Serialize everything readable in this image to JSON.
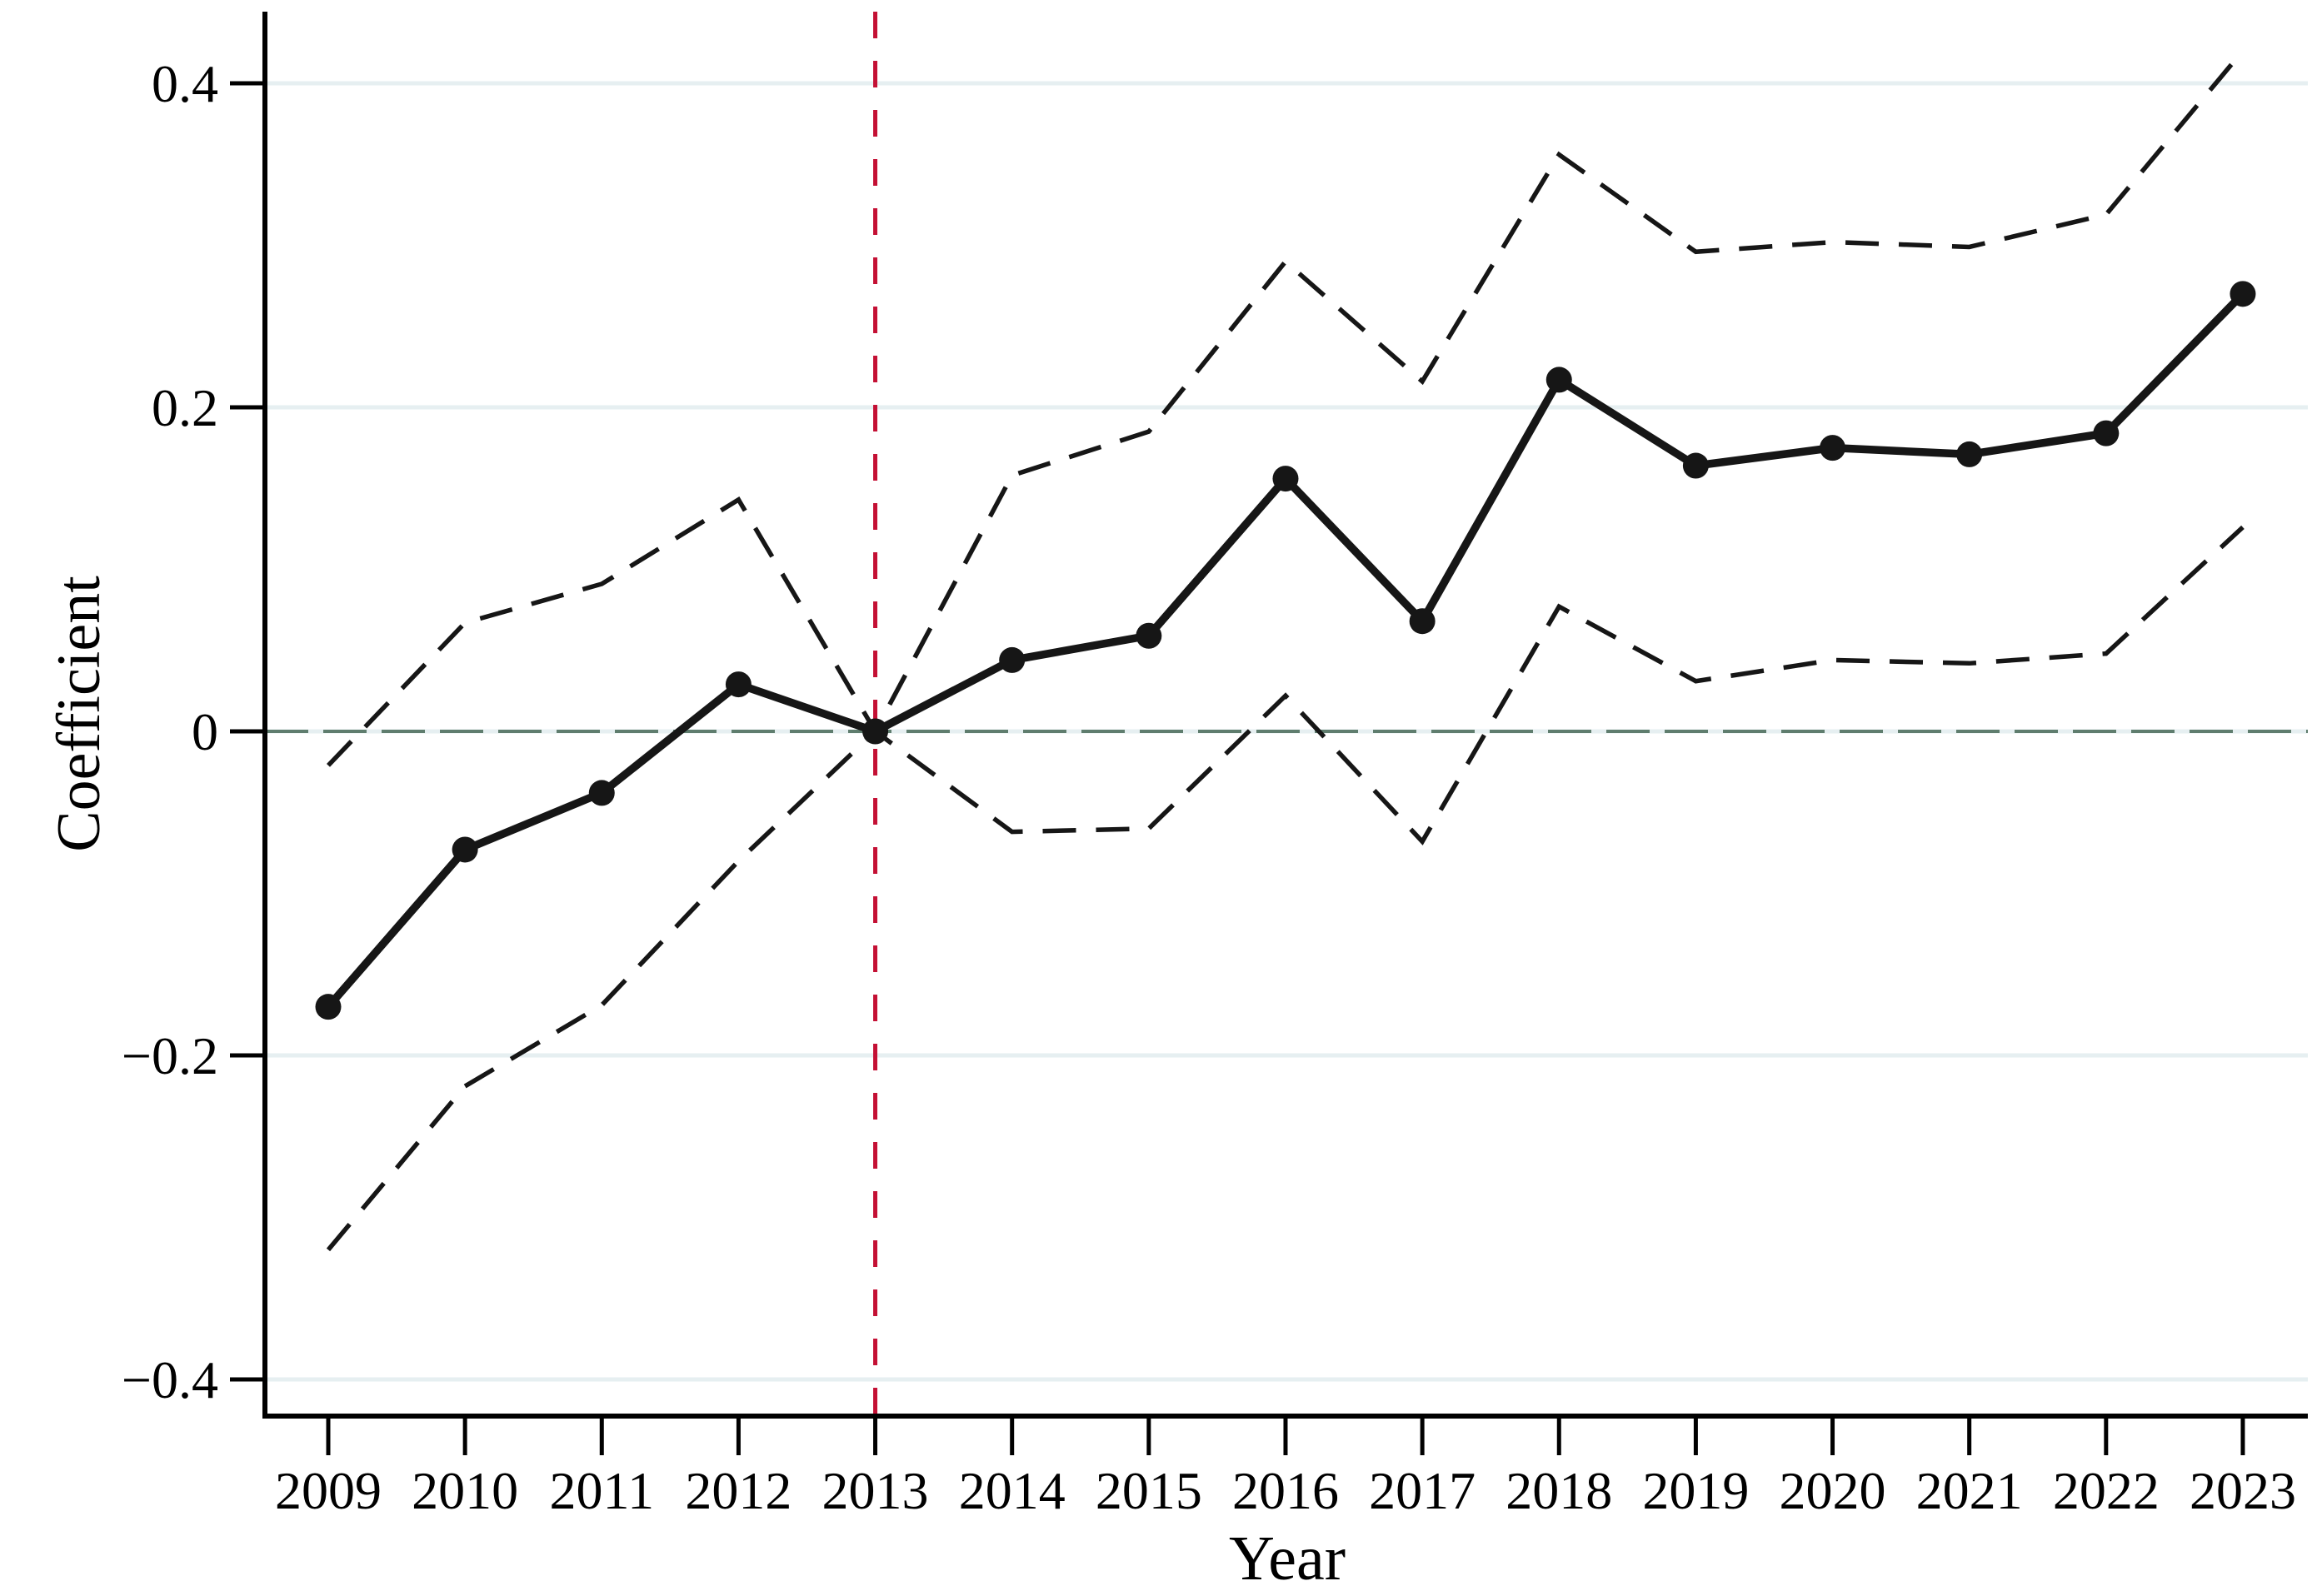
{
  "chart_data": {
    "type": "line",
    "title": "",
    "xlabel": "Year",
    "ylabel": "Coefficient",
    "x": [
      2009,
      2010,
      2011,
      2012,
      2013,
      2014,
      2015,
      2016,
      2017,
      2018,
      2019,
      2020,
      2021,
      2022,
      2023
    ],
    "series": [
      {
        "name": "coefficient",
        "style": "solid-with-markers",
        "values": [
          -0.17,
          -0.073,
          -0.038,
          0.029,
          0,
          0.044,
          0.059,
          0.156,
          0.068,
          0.217,
          0.164,
          0.175,
          0.171,
          0.184,
          0.27
        ]
      },
      {
        "name": "ci-upper",
        "style": "dashed",
        "values": [
          -0.021,
          0.067,
          0.091,
          0.143,
          0,
          0.158,
          0.185,
          0.29,
          0.216,
          0.356,
          0.296,
          0.302,
          0.299,
          0.319,
          0.42
        ]
      },
      {
        "name": "ci-lower",
        "style": "dashed",
        "values": [
          -0.32,
          -0.219,
          -0.169,
          -0.08,
          0,
          -0.062,
          -0.06,
          0.022,
          -0.068,
          0.077,
          0.031,
          0.044,
          0.042,
          0.048,
          0.126
        ]
      }
    ],
    "reference_lines": {
      "vertical_x": 2013,
      "horizontal_y": 0
    },
    "x_axis": {
      "label": "Year",
      "tick_labels": [
        "2009",
        "2010",
        "2011",
        "2012",
        "2013",
        "2014",
        "2015",
        "2016",
        "2017",
        "2018",
        "2019",
        "2020",
        "2021",
        "2022",
        "2023"
      ]
    },
    "y_axis": {
      "label": "Coefficient",
      "tick_values": [
        0.4,
        0.2,
        0,
        -0.2,
        -0.4
      ],
      "tick_labels": [
        "0.4",
        "0.2",
        "0",
        "−0.2",
        "−0.4"
      ]
    },
    "ylim": [
      -0.435,
      0.445
    ],
    "grid": true,
    "legend": "none",
    "colors": {
      "line": "#161616",
      "ci": "#161616",
      "vline": "#c41034",
      "zeroline": "#5f7d6e",
      "grid": "#e6eff1",
      "axis": "#000000",
      "background": "#ffffff"
    }
  }
}
